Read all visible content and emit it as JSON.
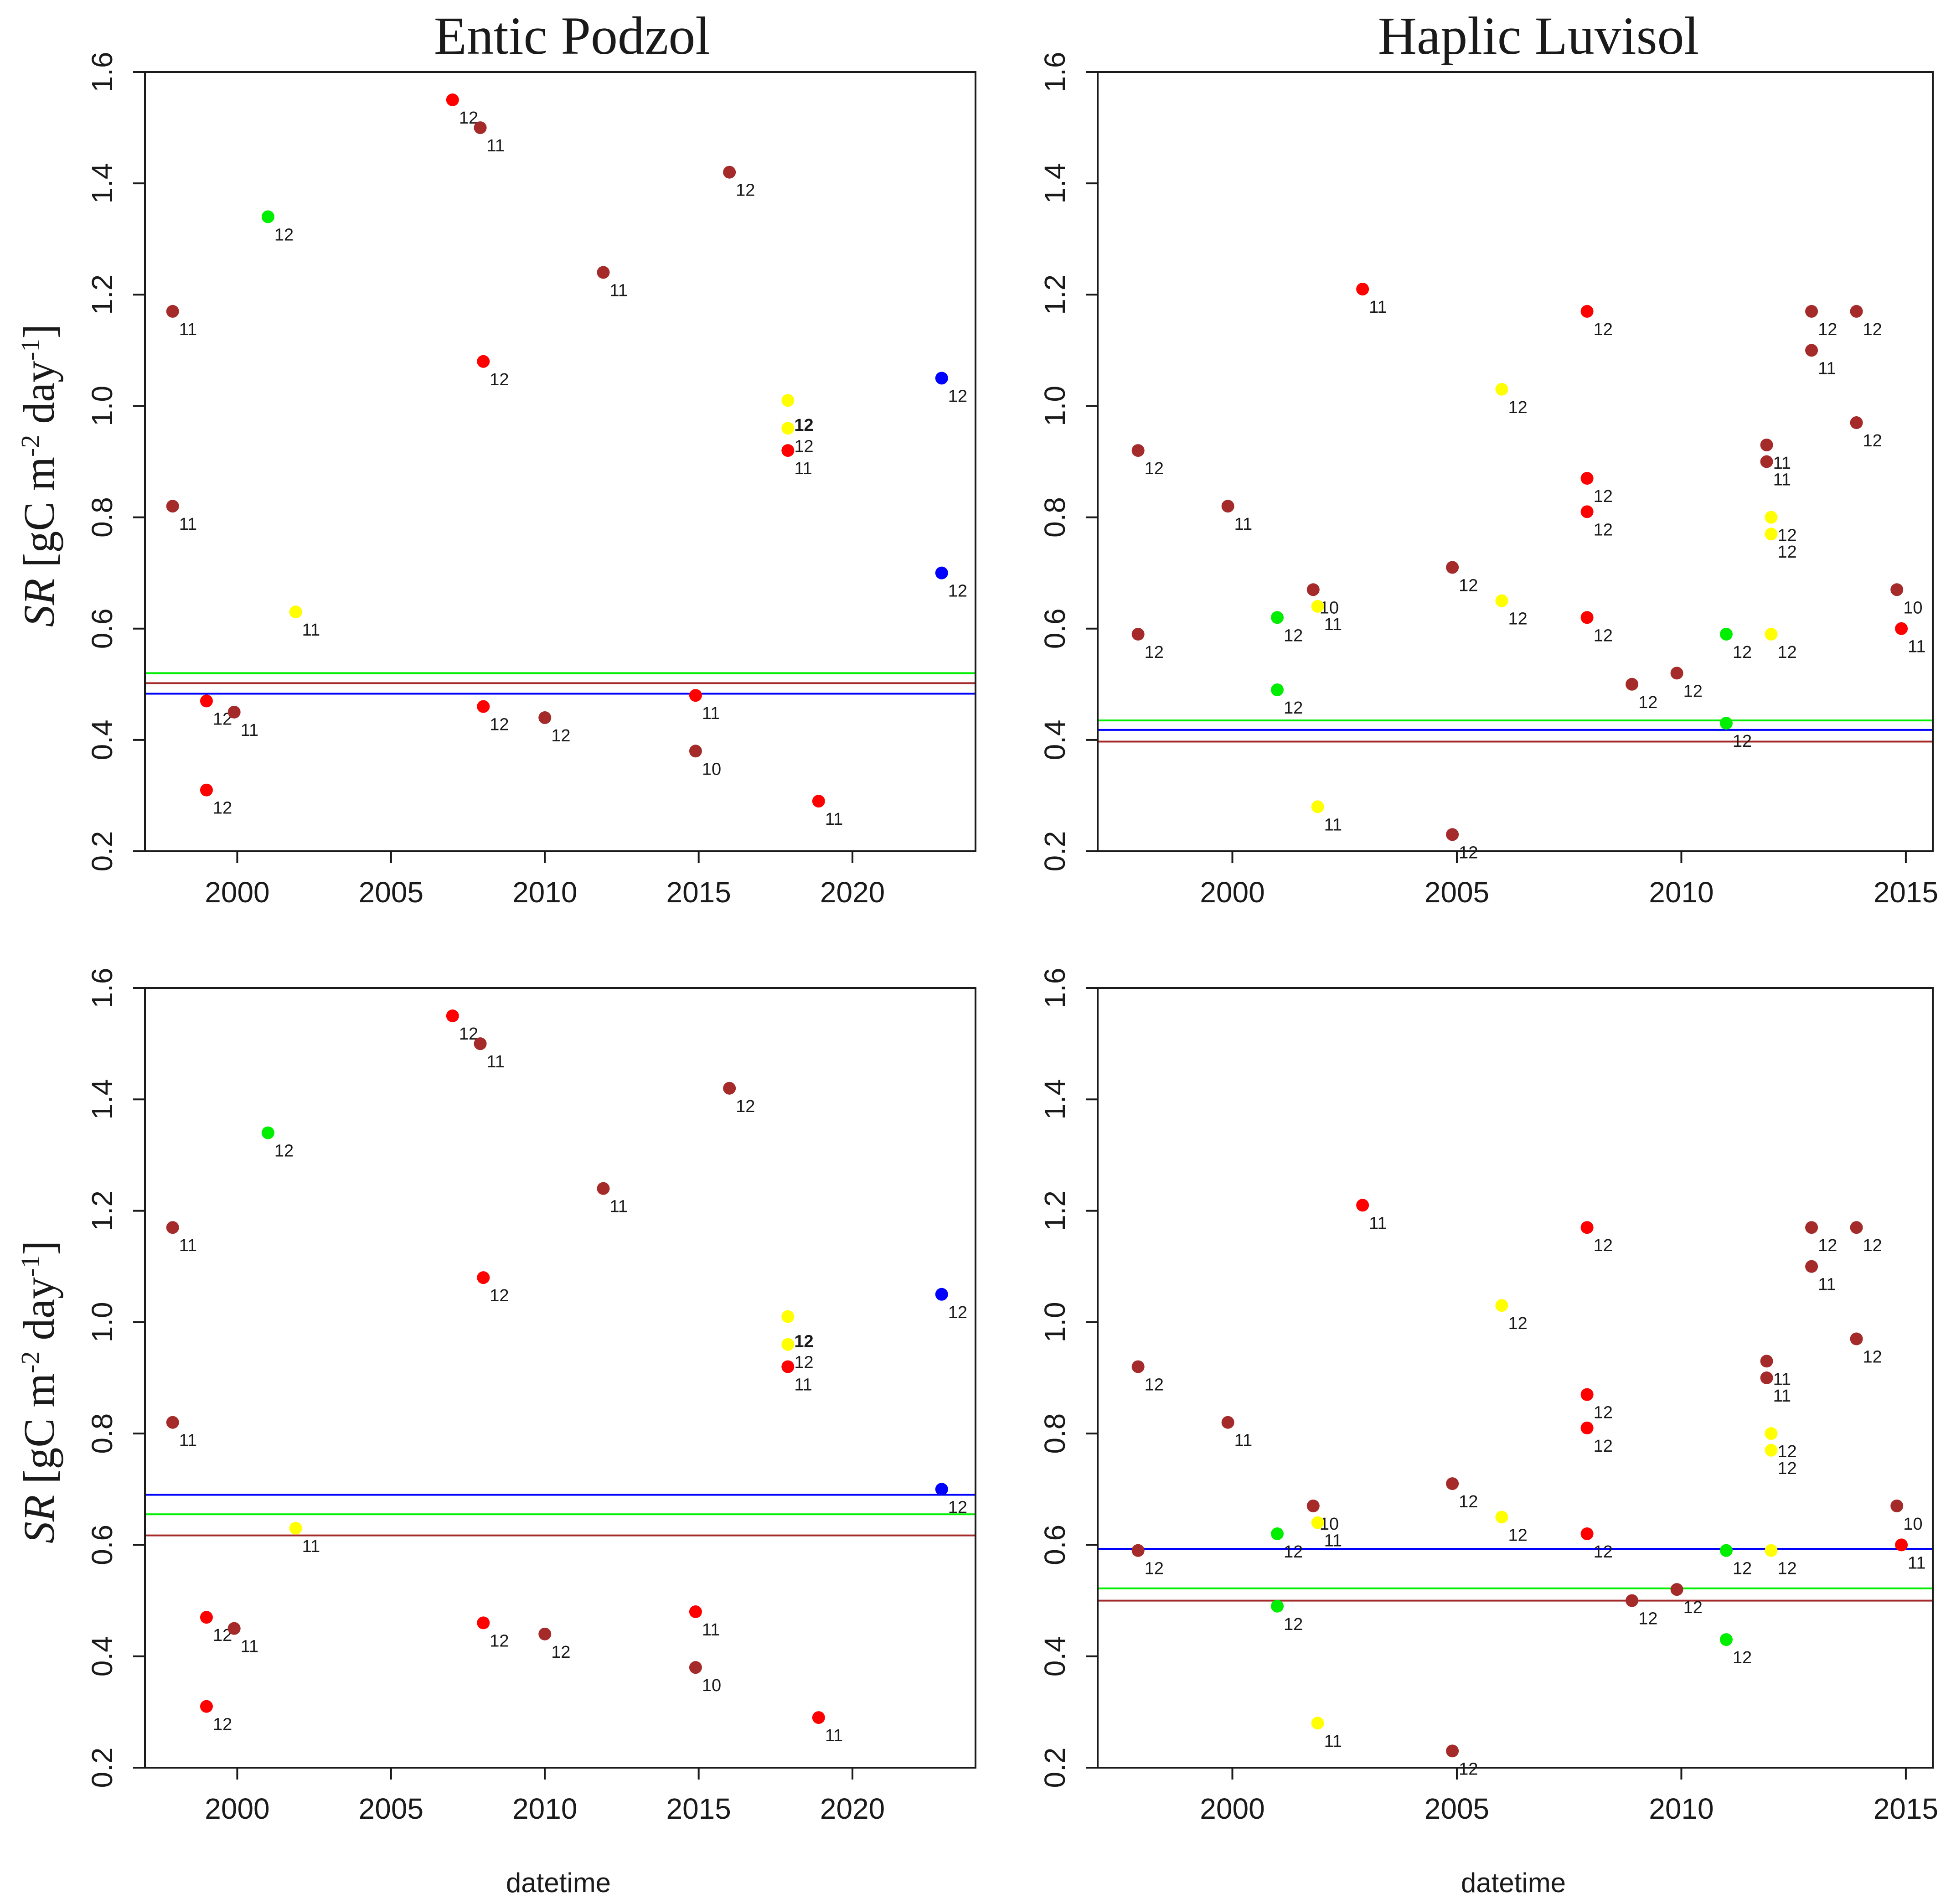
{
  "figure": {
    "column_titles": [
      "Entic Podzol",
      "Haplic Luvisol"
    ],
    "ylabel": {
      "italic": "SR",
      "pre": " [gC m",
      "exp1": "-2",
      "mid": " day",
      "exp2": "-1",
      "post": "]"
    },
    "xlabel": "datetime"
  },
  "colors": {
    "brown": "#a52a2a",
    "red": "#ff0000",
    "green": "#00ee00",
    "yellow": "#ffff00",
    "blue": "#0000ff"
  },
  "chart_data": [
    {
      "type": "scatter",
      "panel": "top-left",
      "title": "Entic Podzol",
      "xlabel": "",
      "ylabel": "SR [gC m-2 day-1]",
      "xlim": [
        1997,
        2024
      ],
      "ylim": [
        0.2,
        1.6
      ],
      "xticks": [
        2000,
        2005,
        2010,
        2015,
        2020
      ],
      "yticks": [
        0.2,
        0.4,
        0.6,
        0.8,
        1.0,
        1.2,
        1.4,
        1.6
      ],
      "points": [
        {
          "x": 1997.9,
          "y": 1.17,
          "color": "brown",
          "label": "11"
        },
        {
          "x": 1997.9,
          "y": 0.82,
          "color": "brown",
          "label": "11"
        },
        {
          "x": 1999.0,
          "y": 0.47,
          "color": "red",
          "label": "12"
        },
        {
          "x": 1999.9,
          "y": 0.45,
          "color": "brown",
          "label": "11"
        },
        {
          "x": 1999.0,
          "y": 0.31,
          "color": "red",
          "label": "12"
        },
        {
          "x": 2001.0,
          "y": 1.34,
          "color": "green",
          "label": "12"
        },
        {
          "x": 2001.9,
          "y": 0.63,
          "color": "yellow",
          "label": "11"
        },
        {
          "x": 2007.0,
          "y": 1.55,
          "color": "red",
          "label": "12"
        },
        {
          "x": 2007.9,
          "y": 1.5,
          "color": "brown",
          "label": "11"
        },
        {
          "x": 2008.0,
          "y": 1.08,
          "color": "red",
          "label": "12"
        },
        {
          "x": 2008.0,
          "y": 0.46,
          "color": "red",
          "label": "12"
        },
        {
          "x": 2010.0,
          "y": 0.44,
          "color": "brown",
          "label": "12"
        },
        {
          "x": 2011.9,
          "y": 1.24,
          "color": "brown",
          "label": "11"
        },
        {
          "x": 2014.9,
          "y": 0.48,
          "color": "red",
          "label": "11"
        },
        {
          "x": 2014.9,
          "y": 0.38,
          "color": "brown",
          "label": "10"
        },
        {
          "x": 2016.0,
          "y": 1.42,
          "color": "brown",
          "label": "12"
        },
        {
          "x": 2017.9,
          "y": 1.01,
          "color": "yellow",
          "label": ""
        },
        {
          "x": 2017.9,
          "y": 0.96,
          "color": "yellow",
          "label": "12"
        },
        {
          "x": 2017.9,
          "y": 0.92,
          "color": "red",
          "label": "11"
        },
        {
          "x": 2018.9,
          "y": 0.29,
          "color": "red",
          "label": "11"
        },
        {
          "x": 2022.9,
          "y": 1.05,
          "color": "blue",
          "label": "12"
        },
        {
          "x": 2022.9,
          "y": 0.7,
          "color": "blue",
          "label": "12"
        }
      ],
      "extra_labels": [
        {
          "x": 2017.9,
          "y": 0.97,
          "text": "12",
          "bold": true
        }
      ],
      "hlines": [
        {
          "y": 0.52,
          "color": "green"
        },
        {
          "y": 0.502,
          "color": "brown"
        },
        {
          "y": 0.483,
          "color": "blue"
        }
      ]
    },
    {
      "type": "scatter",
      "panel": "top-right",
      "title": "Haplic Luvisol",
      "xlabel": "",
      "ylabel": "",
      "xlim": [
        1997,
        2015.6
      ],
      "ylim": [
        0.2,
        1.6
      ],
      "xticks": [
        2000,
        2005,
        2010,
        2015
      ],
      "yticks": [
        0.2,
        0.4,
        0.6,
        0.8,
        1.0,
        1.2,
        1.4,
        1.6
      ],
      "points": [
        {
          "x": 1997.9,
          "y": 0.92,
          "color": "brown",
          "label": "12"
        },
        {
          "x": 1997.9,
          "y": 0.59,
          "color": "brown",
          "label": "12"
        },
        {
          "x": 1999.9,
          "y": 0.82,
          "color": "brown",
          "label": "11"
        },
        {
          "x": 2001.0,
          "y": 0.62,
          "color": "green",
          "label": "12"
        },
        {
          "x": 2001.0,
          "y": 0.49,
          "color": "green",
          "label": "12"
        },
        {
          "x": 2001.8,
          "y": 0.67,
          "color": "brown",
          "label": "10"
        },
        {
          "x": 2001.9,
          "y": 0.64,
          "color": "yellow",
          "label": "11"
        },
        {
          "x": 2001.9,
          "y": 0.28,
          "color": "yellow",
          "label": "11"
        },
        {
          "x": 2002.9,
          "y": 1.21,
          "color": "red",
          "label": "11"
        },
        {
          "x": 2004.9,
          "y": 0.71,
          "color": "brown",
          "label": "12"
        },
        {
          "x": 2004.9,
          "y": 0.23,
          "color": "brown",
          "label": "12"
        },
        {
          "x": 2006.0,
          "y": 1.03,
          "color": "yellow",
          "label": "12"
        },
        {
          "x": 2006.0,
          "y": 0.65,
          "color": "yellow",
          "label": "12"
        },
        {
          "x": 2007.9,
          "y": 1.17,
          "color": "red",
          "label": "12"
        },
        {
          "x": 2007.9,
          "y": 0.87,
          "color": "red",
          "label": "12"
        },
        {
          "x": 2007.9,
          "y": 0.81,
          "color": "red",
          "label": "12"
        },
        {
          "x": 2007.9,
          "y": 0.62,
          "color": "red",
          "label": "12"
        },
        {
          "x": 2008.9,
          "y": 0.5,
          "color": "brown",
          "label": "12"
        },
        {
          "x": 2009.9,
          "y": 0.52,
          "color": "brown",
          "label": "12"
        },
        {
          "x": 2011.0,
          "y": 0.59,
          "color": "green",
          "label": "12"
        },
        {
          "x": 2011.0,
          "y": 0.43,
          "color": "green",
          "label": "12"
        },
        {
          "x": 2011.9,
          "y": 0.93,
          "color": "brown",
          "label": "11"
        },
        {
          "x": 2011.9,
          "y": 0.9,
          "color": "brown",
          "label": "11"
        },
        {
          "x": 2012.0,
          "y": 0.8,
          "color": "yellow",
          "label": "12"
        },
        {
          "x": 2012.0,
          "y": 0.77,
          "color": "yellow",
          "label": "12"
        },
        {
          "x": 2012.0,
          "y": 0.59,
          "color": "yellow",
          "label": "12"
        },
        {
          "x": 2012.9,
          "y": 1.17,
          "color": "brown",
          "label": "12"
        },
        {
          "x": 2012.9,
          "y": 1.1,
          "color": "brown",
          "label": "11"
        },
        {
          "x": 2013.9,
          "y": 1.17,
          "color": "brown",
          "label": "12"
        },
        {
          "x": 2013.9,
          "y": 0.97,
          "color": "brown",
          "label": "12"
        },
        {
          "x": 2014.8,
          "y": 0.67,
          "color": "brown",
          "label": "10"
        },
        {
          "x": 2014.9,
          "y": 0.6,
          "color": "red",
          "label": "11"
        }
      ],
      "extra_labels": [],
      "hlines": [
        {
          "y": 0.435,
          "color": "green"
        },
        {
          "y": 0.418,
          "color": "blue"
        },
        {
          "y": 0.397,
          "color": "brown"
        }
      ]
    },
    {
      "type": "scatter",
      "panel": "bottom-left",
      "title": "",
      "xlabel": "datetime",
      "ylabel": "SR [gC m-2 day-1]",
      "xlim": [
        1997,
        2024
      ],
      "ylim": [
        0.2,
        1.6
      ],
      "xticks": [
        2000,
        2005,
        2010,
        2015,
        2020
      ],
      "yticks": [
        0.2,
        0.4,
        0.6,
        0.8,
        1.0,
        1.2,
        1.4,
        1.6
      ],
      "points": [
        {
          "x": 1997.9,
          "y": 1.17,
          "color": "brown",
          "label": "11"
        },
        {
          "x": 1997.9,
          "y": 0.82,
          "color": "brown",
          "label": "11"
        },
        {
          "x": 1999.0,
          "y": 0.47,
          "color": "red",
          "label": "12"
        },
        {
          "x": 1999.9,
          "y": 0.45,
          "color": "brown",
          "label": "11"
        },
        {
          "x": 1999.0,
          "y": 0.31,
          "color": "red",
          "label": "12"
        },
        {
          "x": 2001.0,
          "y": 1.34,
          "color": "green",
          "label": "12"
        },
        {
          "x": 2001.9,
          "y": 0.63,
          "color": "yellow",
          "label": "11"
        },
        {
          "x": 2007.0,
          "y": 1.55,
          "color": "red",
          "label": "12"
        },
        {
          "x": 2007.9,
          "y": 1.5,
          "color": "brown",
          "label": "11"
        },
        {
          "x": 2008.0,
          "y": 1.08,
          "color": "red",
          "label": "12"
        },
        {
          "x": 2008.0,
          "y": 0.46,
          "color": "red",
          "label": "12"
        },
        {
          "x": 2010.0,
          "y": 0.44,
          "color": "brown",
          "label": "12"
        },
        {
          "x": 2011.9,
          "y": 1.24,
          "color": "brown",
          "label": "11"
        },
        {
          "x": 2014.9,
          "y": 0.48,
          "color": "red",
          "label": "11"
        },
        {
          "x": 2014.9,
          "y": 0.38,
          "color": "brown",
          "label": "10"
        },
        {
          "x": 2016.0,
          "y": 1.42,
          "color": "brown",
          "label": "12"
        },
        {
          "x": 2017.9,
          "y": 1.01,
          "color": "yellow",
          "label": ""
        },
        {
          "x": 2017.9,
          "y": 0.96,
          "color": "yellow",
          "label": "12"
        },
        {
          "x": 2017.9,
          "y": 0.92,
          "color": "red",
          "label": "11"
        },
        {
          "x": 2018.9,
          "y": 0.29,
          "color": "red",
          "label": "11"
        },
        {
          "x": 2022.9,
          "y": 1.05,
          "color": "blue",
          "label": "12"
        },
        {
          "x": 2022.9,
          "y": 0.7,
          "color": "blue",
          "label": "12"
        }
      ],
      "extra_labels": [
        {
          "x": 2017.9,
          "y": 0.97,
          "text": "12",
          "bold": true
        }
      ],
      "hlines": [
        {
          "y": 0.69,
          "color": "blue"
        },
        {
          "y": 0.655,
          "color": "green"
        },
        {
          "y": 0.617,
          "color": "brown"
        }
      ]
    },
    {
      "type": "scatter",
      "panel": "bottom-right",
      "title": "",
      "xlabel": "datetime",
      "ylabel": "",
      "xlim": [
        1997,
        2015.6
      ],
      "ylim": [
        0.2,
        1.6
      ],
      "xticks": [
        2000,
        2005,
        2010,
        2015
      ],
      "yticks": [
        0.2,
        0.4,
        0.6,
        0.8,
        1.0,
        1.2,
        1.4,
        1.6
      ],
      "points": [
        {
          "x": 1997.9,
          "y": 0.92,
          "color": "brown",
          "label": "12"
        },
        {
          "x": 1997.9,
          "y": 0.59,
          "color": "brown",
          "label": "12"
        },
        {
          "x": 1999.9,
          "y": 0.82,
          "color": "brown",
          "label": "11"
        },
        {
          "x": 2001.0,
          "y": 0.62,
          "color": "green",
          "label": "12"
        },
        {
          "x": 2001.0,
          "y": 0.49,
          "color": "green",
          "label": "12"
        },
        {
          "x": 2001.8,
          "y": 0.67,
          "color": "brown",
          "label": "10"
        },
        {
          "x": 2001.9,
          "y": 0.64,
          "color": "yellow",
          "label": "11"
        },
        {
          "x": 2001.9,
          "y": 0.28,
          "color": "yellow",
          "label": "11"
        },
        {
          "x": 2002.9,
          "y": 1.21,
          "color": "red",
          "label": "11"
        },
        {
          "x": 2004.9,
          "y": 0.71,
          "color": "brown",
          "label": "12"
        },
        {
          "x": 2004.9,
          "y": 0.23,
          "color": "brown",
          "label": "12"
        },
        {
          "x": 2006.0,
          "y": 1.03,
          "color": "yellow",
          "label": "12"
        },
        {
          "x": 2006.0,
          "y": 0.65,
          "color": "yellow",
          "label": "12"
        },
        {
          "x": 2007.9,
          "y": 1.17,
          "color": "red",
          "label": "12"
        },
        {
          "x": 2007.9,
          "y": 0.87,
          "color": "red",
          "label": "12"
        },
        {
          "x": 2007.9,
          "y": 0.81,
          "color": "red",
          "label": "12"
        },
        {
          "x": 2007.9,
          "y": 0.62,
          "color": "red",
          "label": "12"
        },
        {
          "x": 2008.9,
          "y": 0.5,
          "color": "brown",
          "label": "12"
        },
        {
          "x": 2009.9,
          "y": 0.52,
          "color": "brown",
          "label": "12"
        },
        {
          "x": 2011.0,
          "y": 0.59,
          "color": "green",
          "label": "12"
        },
        {
          "x": 2011.0,
          "y": 0.43,
          "color": "green",
          "label": "12"
        },
        {
          "x": 2011.9,
          "y": 0.93,
          "color": "brown",
          "label": "11"
        },
        {
          "x": 2011.9,
          "y": 0.9,
          "color": "brown",
          "label": "11"
        },
        {
          "x": 2012.0,
          "y": 0.8,
          "color": "yellow",
          "label": "12"
        },
        {
          "x": 2012.0,
          "y": 0.77,
          "color": "yellow",
          "label": "12"
        },
        {
          "x": 2012.0,
          "y": 0.59,
          "color": "yellow",
          "label": "12"
        },
        {
          "x": 2012.9,
          "y": 1.17,
          "color": "brown",
          "label": "12"
        },
        {
          "x": 2012.9,
          "y": 1.1,
          "color": "brown",
          "label": "11"
        },
        {
          "x": 2013.9,
          "y": 1.17,
          "color": "brown",
          "label": "12"
        },
        {
          "x": 2013.9,
          "y": 0.97,
          "color": "brown",
          "label": "12"
        },
        {
          "x": 2014.8,
          "y": 0.67,
          "color": "brown",
          "label": "10"
        },
        {
          "x": 2014.9,
          "y": 0.6,
          "color": "red",
          "label": "11"
        }
      ],
      "extra_labels": [],
      "hlines": [
        {
          "y": 0.593,
          "color": "blue"
        },
        {
          "y": 0.522,
          "color": "green"
        },
        {
          "y": 0.5,
          "color": "brown"
        }
      ]
    }
  ]
}
